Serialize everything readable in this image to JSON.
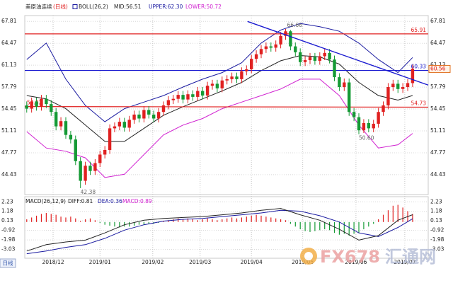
{
  "chart_data": [
    {
      "type": "candlestick",
      "title": "美原油连续",
      "period": "(日线)",
      "legend": [
        {
          "text": "BOLL(26,2)",
          "color": "#222222"
        },
        {
          "text": "MID:56.51",
          "color": "#222222"
        },
        {
          "text": "UPPER:62.30",
          "color": "#1a1aa0"
        },
        {
          "text": "LOWER:50.72",
          "color": "#d020d0"
        }
      ],
      "up_color": "#e02020",
      "down_color": "#159a35",
      "open": [
        55.0,
        54.5,
        55.6,
        54.8,
        56.0,
        55.2,
        54.0,
        51.8,
        52.6,
        50.5,
        49.8,
        46.5,
        43.5,
        45.8,
        45.0,
        46.2,
        47.5,
        48.2,
        51.5,
        51.8,
        52.5,
        51.6,
        52.8,
        53.6,
        53.0,
        54.3,
        53.6,
        53.0,
        54.0,
        55.0,
        55.8,
        56.0,
        56.6,
        55.9,
        56.7,
        56.3,
        57.2,
        56.5,
        58.0,
        58.3,
        57.6,
        58.8,
        59.0,
        59.4,
        59.0,
        60.2,
        60.5,
        62.1,
        62.8,
        63.6,
        64.0,
        63.8,
        64.3,
        65.6,
        66.3,
        64.0,
        63.1,
        61.6,
        61.9,
        62.4,
        61.8,
        62.5,
        63.0,
        62.0,
        59.3,
        57.8,
        58.5,
        54.0,
        53.2,
        51.2,
        52.3,
        51.5,
        52.2,
        54.0,
        55.0,
        57.8,
        58.3,
        57.5,
        57.8,
        58.4
      ],
      "high": [
        55.6,
        56.2,
        56.2,
        56.6,
        56.6,
        55.8,
        54.6,
        53.2,
        53.2,
        51.1,
        50.4,
        47.1,
        46.4,
        46.4,
        46.8,
        48.1,
        48.8,
        52.1,
        52.4,
        53.1,
        53.1,
        53.4,
        54.2,
        54.2,
        54.9,
        54.9,
        54.2,
        54.6,
        55.6,
        56.4,
        56.6,
        57.2,
        57.2,
        57.3,
        57.3,
        57.8,
        57.8,
        58.6,
        58.9,
        58.9,
        59.4,
        59.6,
        60.0,
        60.0,
        60.8,
        61.1,
        62.7,
        63.4,
        64.2,
        64.6,
        64.6,
        64.9,
        66.2,
        66.66,
        66.5,
        64.6,
        63.7,
        62.5,
        63.0,
        63.0,
        63.1,
        63.6,
        63.6,
        62.6,
        59.9,
        59.1,
        59.1,
        54.6,
        53.8,
        52.9,
        52.9,
        52.8,
        54.6,
        55.6,
        58.4,
        58.9,
        58.9,
        58.4,
        59.0,
        61.2
      ],
      "low": [
        53.9,
        53.9,
        54.2,
        54.2,
        54.6,
        53.4,
        51.2,
        51.2,
        49.9,
        49.2,
        45.9,
        42.38,
        42.9,
        44.4,
        44.4,
        45.6,
        46.9,
        47.6,
        50.9,
        51.2,
        51.0,
        51.0,
        52.2,
        52.4,
        52.4,
        53.0,
        52.4,
        52.4,
        53.4,
        54.4,
        55.2,
        55.4,
        55.3,
        55.3,
        55.7,
        55.7,
        55.9,
        55.9,
        57.4,
        57.0,
        57.0,
        58.2,
        58.4,
        58.4,
        58.4,
        59.6,
        59.9,
        61.5,
        62.2,
        63.0,
        63.2,
        63.2,
        63.7,
        65.0,
        63.4,
        62.5,
        61.0,
        61.0,
        61.3,
        61.2,
        61.2,
        61.9,
        61.4,
        58.7,
        57.2,
        57.2,
        53.4,
        52.6,
        50.6,
        50.8,
        50.9,
        50.9,
        51.6,
        53.4,
        54.4,
        57.2,
        56.9,
        56.9,
        57.2,
        57.8
      ],
      "close": [
        54.5,
        55.6,
        54.8,
        56.0,
        55.2,
        54.0,
        51.8,
        52.6,
        50.5,
        49.8,
        46.5,
        43.5,
        45.8,
        45.0,
        46.2,
        47.5,
        48.2,
        51.5,
        51.8,
        52.5,
        51.6,
        52.8,
        53.6,
        53.0,
        54.3,
        53.6,
        53.0,
        54.0,
        55.0,
        55.8,
        56.0,
        56.6,
        55.9,
        56.7,
        56.3,
        57.2,
        56.5,
        58.0,
        58.3,
        57.6,
        58.8,
        59.0,
        59.4,
        59.0,
        60.2,
        60.5,
        62.1,
        62.8,
        63.6,
        64.0,
        63.8,
        64.3,
        65.6,
        66.3,
        64.0,
        63.1,
        61.6,
        61.9,
        62.4,
        61.8,
        62.5,
        63.0,
        62.0,
        59.3,
        57.8,
        58.5,
        54.0,
        53.2,
        51.2,
        52.3,
        51.5,
        52.2,
        54.0,
        55.0,
        57.8,
        58.3,
        57.5,
        57.8,
        58.4,
        60.6
      ],
      "boll": {
        "x": [
          0,
          4,
          8,
          12,
          16,
          20,
          24,
          28,
          32,
          36,
          40,
          44,
          48,
          52,
          56,
          60,
          64,
          68,
          72,
          76,
          79
        ],
        "mid": [
          56.5,
          56,
          54.5,
          52,
          49.5,
          49.5,
          51.5,
          53.5,
          54.8,
          56,
          57.2,
          58.5,
          60.3,
          61.8,
          62.6,
          62.4,
          61.3,
          58.5,
          56.5,
          55.8,
          56.51
        ],
        "upper": [
          62,
          64.5,
          59,
          55,
          52.5,
          54.5,
          55.5,
          56.5,
          57.8,
          59,
          60,
          61.5,
          64.5,
          66.5,
          67.5,
          67,
          66.3,
          64.5,
          62,
          60,
          62.3
        ],
        "lower": [
          51,
          48.5,
          48,
          47,
          44,
          44.5,
          47.5,
          50.5,
          52,
          53,
          54.5,
          55.5,
          56.5,
          57.5,
          59,
          59,
          56.5,
          52,
          48.5,
          49,
          50.72
        ],
        "mid_color": "#222222",
        "upper_color": "#1a1aa0",
        "lower_color": "#d020d0"
      },
      "hlines": [
        {
          "right": 65.91,
          "color": "#e02020"
        },
        {
          "right": 60.33,
          "color": "#1a1ad0"
        },
        {
          "left": 54.82,
          "right": 54.73,
          "color": "#e02020"
        }
      ],
      "trendline": {
        "start": [
          45.2,
          67.8
        ],
        "end": [
          82.2,
          58.1
        ],
        "color": "#1a1ad0"
      },
      "annotations": [
        66.66,
        42.38,
        {
          "value": 50.6,
          "label": "50.60"
        }
      ],
      "price_tag": 60.56,
      "xlim": [
        -0.4,
        82.2
      ],
      "xticks": [
        {
          "value": 5.4,
          "label": "2018/12"
        },
        {
          "value": 15,
          "label": "2019/01"
        },
        {
          "value": 25.8,
          "label": "2019/02"
        },
        {
          "value": 35.5,
          "label": "2019/03"
        },
        {
          "value": 46,
          "label": "2019/04"
        },
        {
          "value": 56.5,
          "label": "2019/05"
        },
        {
          "value": 67.4,
          "label": "2019/06"
        },
        {
          "value": 77.4,
          "label": "2019/07"
        }
      ],
      "ylim": [
        41.4,
        68.7
      ],
      "yticks": [
        67.81,
        64.47,
        61.13,
        57.79,
        54.45,
        51.11,
        47.77,
        44.43
      ]
    },
    {
      "type": "macd",
      "legend": [
        {
          "text": "MACD(26,12,9)",
          "color": "#222222"
        },
        {
          "text": "DIFF:0.81",
          "color": "#222222"
        },
        {
          "text": "DEA:0.36",
          "color": "#1a1aa0"
        },
        {
          "text": "MACD:0.89",
          "color": "#d020d0"
        }
      ],
      "histogram": [
        0.3,
        0.5,
        0.7,
        0.9,
        1.0,
        0.9,
        0.8,
        0.6,
        0.5,
        0.6,
        0.4,
        0.1,
        0.3,
        0.4,
        0.2,
        -0.1,
        -0.3,
        -0.4,
        -0.5,
        -0.6,
        -0.5,
        -0.5,
        -0.4,
        -0.3,
        -0.3,
        -0.2,
        -0.2,
        -0.1,
        0.1,
        0.2,
        0.3,
        0.4,
        0.3,
        0.4,
        0.3,
        0.2,
        0.3,
        0.4,
        0.3,
        0.2,
        0.3,
        0.4,
        0.5,
        0.4,
        0.5,
        0.6,
        0.7,
        0.8,
        0.7,
        0.6,
        0.5,
        0.4,
        0.3,
        0.2,
        -0.2,
        -0.5,
        -0.8,
        -1.0,
        -1.1,
        -1.0,
        -0.9,
        -0.8,
        -0.9,
        -1.2,
        -1.4,
        -1.3,
        -1.5,
        -1.3,
        -1.2,
        -0.8,
        -0.5,
        -0.2,
        0.3,
        0.8,
        1.3,
        1.8,
        1.9,
        1.6,
        1.2,
        0.89
      ],
      "up_color": "#e02020",
      "down_color": "#159a35",
      "x": [
        0,
        4,
        8,
        12,
        16,
        20,
        24,
        28,
        32,
        36,
        40,
        44,
        48,
        52,
        56,
        60,
        64,
        68,
        72,
        76,
        79
      ],
      "diff": [
        -3.2,
        -2.5,
        -2.2,
        -2.0,
        -1.2,
        -0.3,
        0.2,
        0.4,
        0.5,
        0.6,
        0.8,
        1.0,
        1.3,
        1.5,
        0.8,
        0.2,
        -0.8,
        -2.0,
        -1.5,
        0.2,
        0.81
      ],
      "dea": [
        -3.5,
        -3.2,
        -2.8,
        -2.5,
        -1.8,
        -0.9,
        -0.3,
        0.1,
        0.3,
        0.4,
        0.6,
        0.8,
        1.0,
        1.3,
        1.2,
        0.7,
        0.0,
        -1.2,
        -1.6,
        -0.6,
        0.36
      ],
      "diff_color": "#222222",
      "dea_color": "#1a1aa0",
      "ylim": [
        -4.0,
        2.8
      ],
      "yticks": [
        2.23,
        1.18,
        0.13,
        -0.92,
        -1.98,
        -3.03
      ]
    }
  ],
  "footer_tab": "日线",
  "watermark": {
    "brand": "FX678",
    "name": "汇通网"
  }
}
